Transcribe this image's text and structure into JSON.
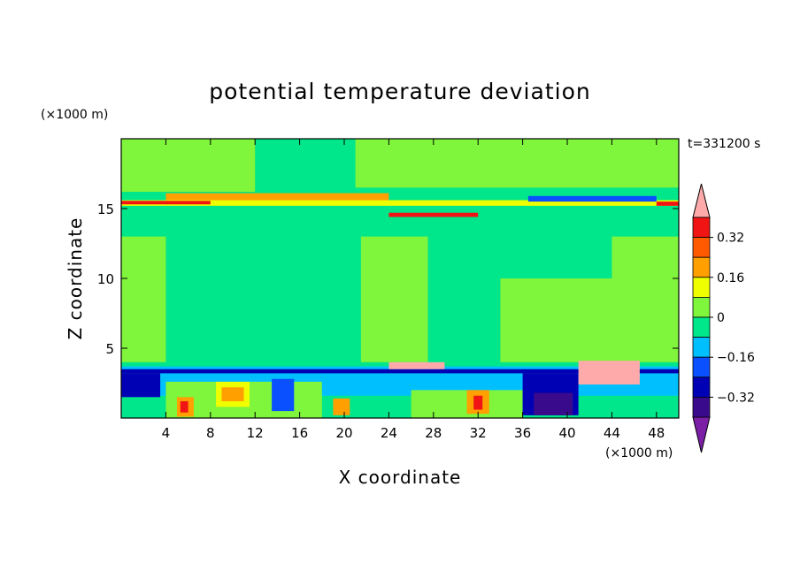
{
  "chart_data": {
    "type": "heatmap",
    "title": "potential temperature deviation",
    "xlabel": "X coordinate",
    "ylabel": "Z coordinate",
    "x_unit": "(×1000 m)",
    "y_unit": "(×1000 m)",
    "time_label": "t=331200 s",
    "xlim": [
      0,
      50
    ],
    "ylim": [
      0,
      20
    ],
    "x_ticks": [
      4,
      8,
      12,
      16,
      20,
      24,
      28,
      32,
      36,
      40,
      44,
      48
    ],
    "y_ticks": [
      5,
      10,
      15
    ],
    "colorbar": {
      "levels": [
        -0.4,
        -0.32,
        -0.24,
        -0.16,
        -0.08,
        0,
        0.08,
        0.16,
        0.24,
        0.32,
        0.4
      ],
      "colors": [
        "#7a1fa6",
        "#3a0a8c",
        "#0000b4",
        "#0a50ff",
        "#00bfff",
        "#00e68a",
        "#7ff53c",
        "#f0ff00",
        "#ffa000",
        "#ff5a00",
        "#f01414",
        "#ffaaaa"
      ],
      "tick_labels": [
        "0.32",
        "0.16",
        "0",
        "−0.16",
        "−0.32"
      ],
      "tick_values": [
        0.32,
        0.16,
        0,
        -0.16,
        -0.32
      ]
    },
    "bands": [
      {
        "value": -0.04,
        "x0": 0,
        "x1": 50,
        "z0": 0,
        "z1": 20
      },
      {
        "value": 0.04,
        "x0": 0,
        "x1": 12,
        "z0": 16.2,
        "z1": 20
      },
      {
        "value": 0.04,
        "x0": 21,
        "x1": 50,
        "z0": 16.5,
        "z1": 20
      },
      {
        "value": 0.04,
        "x0": 0,
        "x1": 4,
        "z0": 4,
        "z1": 13
      },
      {
        "value": 0.04,
        "x0": 21.5,
        "x1": 27.5,
        "z0": 4,
        "z1": 13
      },
      {
        "value": 0.04,
        "x0": 34,
        "x1": 50,
        "z0": 4,
        "z1": 10
      },
      {
        "value": 0.04,
        "x0": 44,
        "x1": 50,
        "z0": 10,
        "z1": 13
      },
      {
        "value": 0.2,
        "x0": 4,
        "x1": 24,
        "z0": 15.6,
        "z1": 16.1
      },
      {
        "value": 0.12,
        "x0": 0,
        "x1": 50,
        "z0": 15.2,
        "z1": 15.6
      },
      {
        "value": 0.36,
        "x0": 0,
        "x1": 8,
        "z0": 15.3,
        "z1": 15.55
      },
      {
        "value": 0.36,
        "x0": 48,
        "x1": 50,
        "z0": 15.2,
        "z1": 15.5
      },
      {
        "value": -0.2,
        "x0": 36.5,
        "x1": 48,
        "z0": 15.5,
        "z1": 15.9
      },
      {
        "value": -0.04,
        "x0": 20,
        "x1": 32,
        "z0": 14.8,
        "z1": 15.1
      },
      {
        "value": 0.36,
        "x0": 24,
        "x1": 32,
        "z0": 14.4,
        "z1": 14.7
      },
      {
        "value": -0.12,
        "x0": 0,
        "x1": 50,
        "z0": 3.3,
        "z1": 3.7
      },
      {
        "value": -0.28,
        "x0": 0,
        "x1": 50,
        "z0": 3.2,
        "z1": 3.5
      },
      {
        "value": -0.12,
        "x0": 0,
        "x1": 50,
        "z0": 0,
        "z1": 3.2
      },
      {
        "value": -0.04,
        "x0": 0,
        "x1": 50,
        "z0": 0,
        "z1": 1.6
      },
      {
        "value": 0.04,
        "x0": 4,
        "x1": 18,
        "z0": 0,
        "z1": 2.6
      },
      {
        "value": 0.04,
        "x0": 26,
        "x1": 36,
        "z0": 0,
        "z1": 2.0
      },
      {
        "value": 0.12,
        "x0": 8.5,
        "x1": 11.5,
        "z0": 0.8,
        "z1": 2.6
      },
      {
        "value": 0.2,
        "x0": 9,
        "x1": 11,
        "z0": 1.2,
        "z1": 2.2
      },
      {
        "value": 0.2,
        "x0": 5,
        "x1": 6.5,
        "z0": 0.1,
        "z1": 1.5
      },
      {
        "value": 0.2,
        "x0": 19,
        "x1": 20.5,
        "z0": 0.2,
        "z1": 1.4
      },
      {
        "value": 0.2,
        "x0": 31,
        "x1": 33,
        "z0": 0.3,
        "z1": 2.0
      },
      {
        "value": 0.36,
        "x0": 5.3,
        "x1": 6.0,
        "z0": 0.4,
        "z1": 1.2
      },
      {
        "value": 0.36,
        "x0": 31.6,
        "x1": 32.4,
        "z0": 0.6,
        "z1": 1.6
      },
      {
        "value": -0.28,
        "x0": 0,
        "x1": 3.5,
        "z0": 1.5,
        "z1": 3.2
      },
      {
        "value": -0.28,
        "x0": 36,
        "x1": 41,
        "z0": 0.2,
        "z1": 3.2
      },
      {
        "value": -0.36,
        "x0": 37,
        "x1": 40.5,
        "z0": 0.2,
        "z1": 1.8
      },
      {
        "value": -0.2,
        "x0": 13.5,
        "x1": 15.5,
        "z0": 0.5,
        "z1": 2.8
      },
      {
        "value": 0.44,
        "x0": 24,
        "x1": 29,
        "z0": 3.5,
        "z1": 4.0
      },
      {
        "value": 0.44,
        "x0": 41,
        "x1": 46.5,
        "z0": 2.4,
        "z1": 4.1
      }
    ]
  }
}
